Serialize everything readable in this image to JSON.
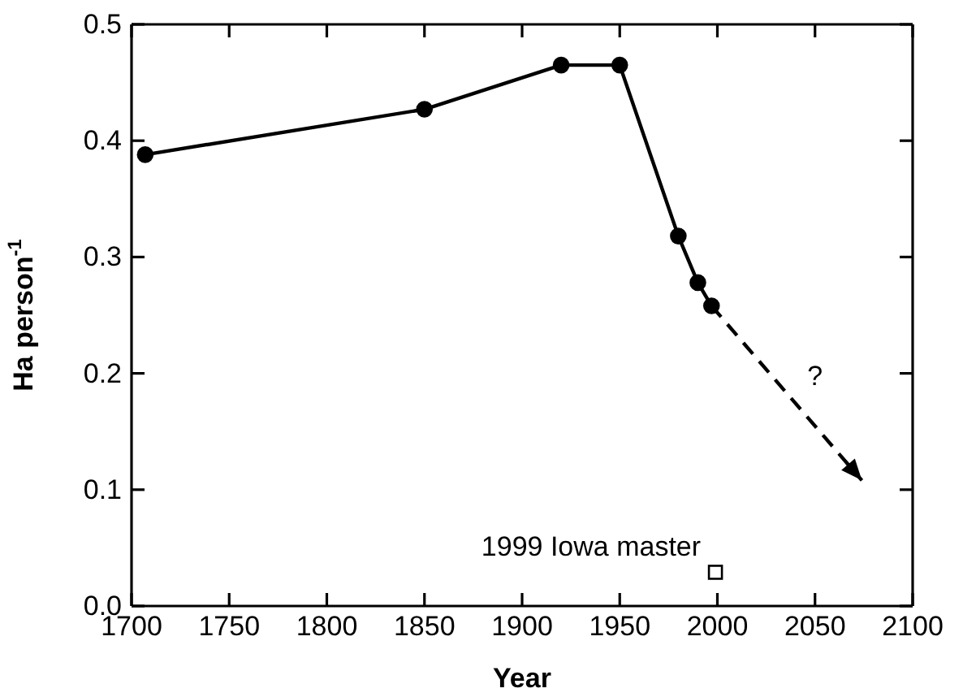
{
  "chart_data": {
    "type": "line",
    "xlabel": "Year",
    "ylabel": "Ha person$^{-1}$",
    "xlim": [
      1700,
      2100
    ],
    "xticks": [
      1700,
      1750,
      1800,
      1850,
      1900,
      1950,
      2000,
      2050,
      2100
    ],
    "ylim": [
      0,
      0.5
    ],
    "yticks": [
      {
        "value": 0,
        "label": "0.0"
      },
      0.1,
      0.2,
      0.3,
      0.4,
      0.5
    ],
    "series": [
      {
        "color": "#000000",
        "marker": "circle",
        "line_style": "solid",
        "x": [
          1707,
          1850,
          1920,
          1950,
          1980,
          1990,
          1997
        ],
        "values": [
          0.388,
          0.427,
          0.465,
          0.465,
          0.318,
          0.278,
          0.258
        ]
      },
      {
        "type": "line",
        "color": "#000000",
        "marker": "none",
        "line_style": "dashed",
        "x": [
          1997,
          2074
        ],
        "values": [
          0.258,
          0.108
        ]
      },
      {
        "type": "scatter",
        "color": "#000000",
        "marker": "square",
        "x": [
          1999
        ],
        "values": [
          0.029
        ]
      }
    ],
    "annotations": [
      "?",
      {
        "text": "1999 Iowa master",
        "x": 1999,
        "y": 0.029
      }
    ]
  }
}
